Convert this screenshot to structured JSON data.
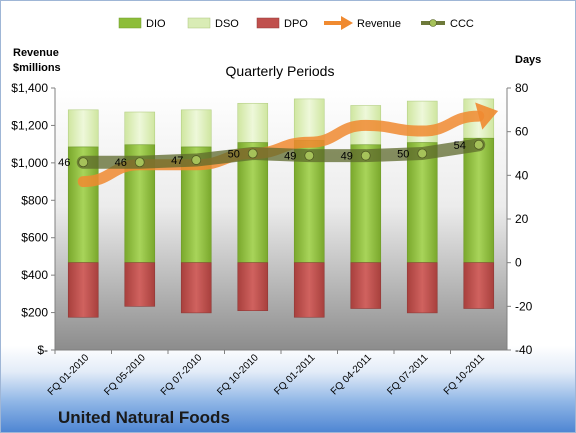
{
  "chart_data": {
    "type": "bar",
    "title": "Quarterly Periods",
    "company": "United Natural Foods",
    "categories": [
      "FQ 01-2010",
      "FQ 05-2010",
      "FQ 07-2010",
      "FQ 10-2010",
      "FQ 01-2011",
      "FQ 04-2011",
      "FQ 07-2011",
      "FQ 10-2011"
    ],
    "left_axis": {
      "label_line1": "Revenue",
      "label_line2": "$millions",
      "ylim": [
        0,
        1400
      ],
      "ticks": [
        0,
        200,
        400,
        600,
        800,
        1000,
        1200,
        1400
      ],
      "tick_labels": [
        "$-",
        "$200",
        "$400",
        "$600",
        "$800",
        "$1,000",
        "$1,200",
        "$1,400"
      ]
    },
    "right_axis": {
      "label": "Days",
      "ylim": [
        -40,
        80
      ],
      "ticks": [
        -40,
        -20,
        0,
        20,
        40,
        60,
        80
      ],
      "tick_labels": [
        "-40",
        "-20",
        "0",
        "20",
        "40",
        "60",
        "80"
      ]
    },
    "legend": [
      "DIO",
      "DSO",
      "DPO",
      "Revenue",
      "CCC"
    ],
    "legend_position": "top",
    "series": [
      {
        "name": "DIO",
        "axis": "right",
        "kind": "stacked-bar",
        "color": "#8dbd3a",
        "values": [
          53,
          54,
          53,
          55,
          56,
          54,
          55,
          57
        ]
      },
      {
        "name": "DSO",
        "axis": "right",
        "kind": "stacked-bar",
        "color": "#d9ecb5",
        "values": [
          17,
          15,
          17,
          18,
          19,
          18,
          19,
          18
        ]
      },
      {
        "name": "DPO",
        "axis": "right",
        "kind": "negative-bar",
        "color": "#c0504d",
        "values": [
          -25,
          -20,
          -23,
          -22,
          -25,
          -21,
          -23,
          -21
        ]
      },
      {
        "name": "Revenue",
        "axis": "left",
        "kind": "arrow-line",
        "color": "#f08a30",
        "values": [
          900,
          990,
          990,
          1050,
          1110,
          1200,
          1170,
          1250
        ]
      },
      {
        "name": "CCC",
        "axis": "right",
        "kind": "line-markers",
        "color": "#6e7a3a",
        "values": [
          46,
          46,
          47,
          50,
          49,
          49,
          50,
          54
        ]
      }
    ],
    "ccc_labels": [
      "46",
      "46",
      "47",
      "50",
      "49",
      "49",
      "50",
      "54"
    ],
    "grid": false
  }
}
